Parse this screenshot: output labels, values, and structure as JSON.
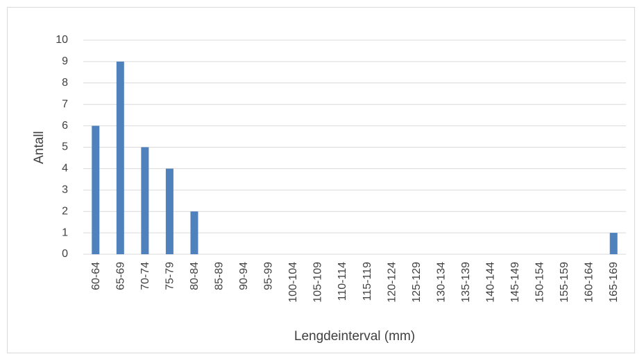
{
  "chart_data": {
    "type": "bar",
    "title": "",
    "xlabel": "Lengdeinterval (mm)",
    "ylabel": "Antall",
    "categories": [
      "60-64",
      "65-69",
      "70-74",
      "75-79",
      "80-84",
      "85-89",
      "90-94",
      "95-99",
      "100-104",
      "105-109",
      "110-114",
      "115-119",
      "120-124",
      "125-129",
      "130-134",
      "135-139",
      "140-144",
      "145-149",
      "150-154",
      "155-159",
      "160-164",
      "165-169"
    ],
    "values": [
      6,
      9,
      5,
      4,
      2,
      0,
      0,
      0,
      0,
      0,
      0,
      0,
      0,
      0,
      0,
      0,
      0,
      0,
      0,
      0,
      0,
      1
    ],
    "ylim": [
      0,
      10
    ],
    "yticks": [
      0,
      1,
      2,
      3,
      4,
      5,
      6,
      7,
      8,
      9,
      10
    ],
    "grid": true,
    "legend": "none",
    "bar_color": "#4f81bd",
    "grid_color": "#d9d9d9"
  }
}
